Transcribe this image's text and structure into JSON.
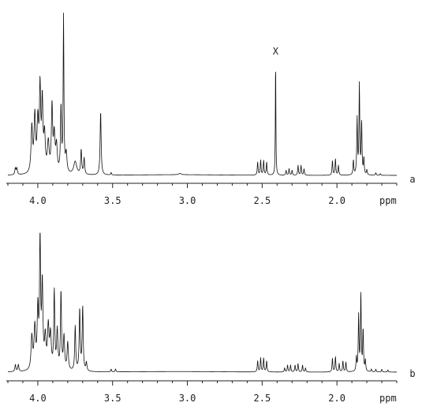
{
  "chart_data": [
    {
      "type": "line",
      "panel_label": "a",
      "x_unit": "ppm",
      "xlim": [
        4.2,
        1.6
      ],
      "x_reversed": true,
      "xticks": [
        4.0,
        3.5,
        3.0,
        2.5,
        2.0
      ],
      "tick_labels": [
        "4.0",
        "3.5",
        "3.0",
        "2.5",
        "2.0"
      ],
      "ylim": [
        0,
        1
      ],
      "annotations": [
        {
          "text": "X",
          "x": 2.41,
          "y": 0.72
        }
      ],
      "peaks": [
        {
          "x": 4.15,
          "h": 0.04,
          "w": 0.004
        },
        {
          "x": 4.14,
          "h": 0.04,
          "w": 0.004
        },
        {
          "x": 4.04,
          "h": 0.28,
          "w": 0.006
        },
        {
          "x": 4.02,
          "h": 0.34,
          "w": 0.006
        },
        {
          "x": 4.0,
          "h": 0.3,
          "w": 0.006
        },
        {
          "x": 3.985,
          "h": 0.5,
          "w": 0.005
        },
        {
          "x": 3.97,
          "h": 0.42,
          "w": 0.005
        },
        {
          "x": 3.955,
          "h": 0.22,
          "w": 0.006
        },
        {
          "x": 3.93,
          "h": 0.18,
          "w": 0.007
        },
        {
          "x": 3.905,
          "h": 0.4,
          "w": 0.005
        },
        {
          "x": 3.89,
          "h": 0.22,
          "w": 0.006
        },
        {
          "x": 3.875,
          "h": 0.16,
          "w": 0.006
        },
        {
          "x": 3.845,
          "h": 0.4,
          "w": 0.004
        },
        {
          "x": 3.828,
          "h": 0.95,
          "w": 0.003
        },
        {
          "x": 3.81,
          "h": 0.12,
          "w": 0.006
        },
        {
          "x": 3.75,
          "h": 0.08,
          "w": 0.012
        },
        {
          "x": 3.71,
          "h": 0.15,
          "w": 0.004
        },
        {
          "x": 3.69,
          "h": 0.1,
          "w": 0.004
        },
        {
          "x": 3.58,
          "h": 0.39,
          "w": 0.004
        },
        {
          "x": 3.51,
          "h": 0.015,
          "w": 0.003
        },
        {
          "x": 3.05,
          "h": 0.008,
          "w": 0.01
        },
        {
          "x": 2.53,
          "h": 0.08,
          "w": 0.003
        },
        {
          "x": 2.51,
          "h": 0.09,
          "w": 0.003
        },
        {
          "x": 2.49,
          "h": 0.09,
          "w": 0.003
        },
        {
          "x": 2.47,
          "h": 0.08,
          "w": 0.003
        },
        {
          "x": 2.34,
          "h": 0.03,
          "w": 0.003
        },
        {
          "x": 2.32,
          "h": 0.04,
          "w": 0.003
        },
        {
          "x": 2.3,
          "h": 0.03,
          "w": 0.003
        },
        {
          "x": 2.41,
          "h": 0.72,
          "w": 0.002
        },
        {
          "x": 2.26,
          "h": 0.06,
          "w": 0.003
        },
        {
          "x": 2.24,
          "h": 0.06,
          "w": 0.003
        },
        {
          "x": 2.22,
          "h": 0.04,
          "w": 0.003
        },
        {
          "x": 2.03,
          "h": 0.09,
          "w": 0.003
        },
        {
          "x": 2.01,
          "h": 0.1,
          "w": 0.003
        },
        {
          "x": 1.99,
          "h": 0.06,
          "w": 0.003
        },
        {
          "x": 1.89,
          "h": 0.09,
          "w": 0.003
        },
        {
          "x": 1.865,
          "h": 0.34,
          "w": 0.003
        },
        {
          "x": 1.85,
          "h": 0.55,
          "w": 0.003
        },
        {
          "x": 1.835,
          "h": 0.32,
          "w": 0.003
        },
        {
          "x": 1.82,
          "h": 0.1,
          "w": 0.003
        },
        {
          "x": 1.8,
          "h": 0.03,
          "w": 0.003
        },
        {
          "x": 1.74,
          "h": 0.015,
          "w": 0.003
        },
        {
          "x": 1.71,
          "h": 0.01,
          "w": 0.003
        }
      ]
    },
    {
      "type": "line",
      "panel_label": "b",
      "x_unit": "ppm",
      "xlim": [
        4.2,
        1.6
      ],
      "x_reversed": true,
      "xticks": [
        4.0,
        3.5,
        3.0,
        2.5,
        2.0
      ],
      "tick_labels": [
        "4.0",
        "3.5",
        "3.0",
        "2.5",
        "2.0"
      ],
      "ylim": [
        0,
        1
      ],
      "peaks": [
        {
          "x": 4.15,
          "h": 0.05,
          "w": 0.004
        },
        {
          "x": 4.13,
          "h": 0.05,
          "w": 0.004
        },
        {
          "x": 4.04,
          "h": 0.24,
          "w": 0.006
        },
        {
          "x": 4.02,
          "h": 0.3,
          "w": 0.006
        },
        {
          "x": 4.0,
          "h": 0.42,
          "w": 0.005
        },
        {
          "x": 3.985,
          "h": 0.96,
          "w": 0.004
        },
        {
          "x": 3.97,
          "h": 0.6,
          "w": 0.005
        },
        {
          "x": 3.95,
          "h": 0.22,
          "w": 0.006
        },
        {
          "x": 3.93,
          "h": 0.3,
          "w": 0.006
        },
        {
          "x": 3.915,
          "h": 0.24,
          "w": 0.006
        },
        {
          "x": 3.89,
          "h": 0.56,
          "w": 0.004
        },
        {
          "x": 3.87,
          "h": 0.28,
          "w": 0.005
        },
        {
          "x": 3.845,
          "h": 0.56,
          "w": 0.004
        },
        {
          "x": 3.825,
          "h": 0.24,
          "w": 0.005
        },
        {
          "x": 3.8,
          "h": 0.2,
          "w": 0.005
        },
        {
          "x": 3.75,
          "h": 0.32,
          "w": 0.004
        },
        {
          "x": 3.72,
          "h": 0.44,
          "w": 0.004
        },
        {
          "x": 3.7,
          "h": 0.46,
          "w": 0.004
        },
        {
          "x": 3.675,
          "h": 0.06,
          "w": 0.004
        },
        {
          "x": 3.51,
          "h": 0.02,
          "w": 0.003
        },
        {
          "x": 3.48,
          "h": 0.02,
          "w": 0.003
        },
        {
          "x": 2.53,
          "h": 0.08,
          "w": 0.003
        },
        {
          "x": 2.51,
          "h": 0.1,
          "w": 0.003
        },
        {
          "x": 2.49,
          "h": 0.1,
          "w": 0.003
        },
        {
          "x": 2.47,
          "h": 0.08,
          "w": 0.003
        },
        {
          "x": 2.35,
          "h": 0.03,
          "w": 0.003
        },
        {
          "x": 2.33,
          "h": 0.05,
          "w": 0.003
        },
        {
          "x": 2.31,
          "h": 0.05,
          "w": 0.003
        },
        {
          "x": 2.28,
          "h": 0.05,
          "w": 0.003
        },
        {
          "x": 2.26,
          "h": 0.06,
          "w": 0.003
        },
        {
          "x": 2.23,
          "h": 0.05,
          "w": 0.003
        },
        {
          "x": 2.21,
          "h": 0.03,
          "w": 0.003
        },
        {
          "x": 2.03,
          "h": 0.1,
          "w": 0.003
        },
        {
          "x": 2.01,
          "h": 0.11,
          "w": 0.003
        },
        {
          "x": 1.985,
          "h": 0.06,
          "w": 0.003
        },
        {
          "x": 1.96,
          "h": 0.08,
          "w": 0.003
        },
        {
          "x": 1.94,
          "h": 0.07,
          "w": 0.003
        },
        {
          "x": 1.87,
          "h": 0.1,
          "w": 0.003
        },
        {
          "x": 1.855,
          "h": 0.4,
          "w": 0.003
        },
        {
          "x": 1.84,
          "h": 0.56,
          "w": 0.003
        },
        {
          "x": 1.825,
          "h": 0.3,
          "w": 0.003
        },
        {
          "x": 1.81,
          "h": 0.08,
          "w": 0.003
        },
        {
          "x": 1.77,
          "h": 0.02,
          "w": 0.003
        },
        {
          "x": 1.74,
          "h": 0.02,
          "w": 0.003
        },
        {
          "x": 1.7,
          "h": 0.02,
          "w": 0.003
        },
        {
          "x": 1.66,
          "h": 0.015,
          "w": 0.003
        }
      ]
    }
  ]
}
